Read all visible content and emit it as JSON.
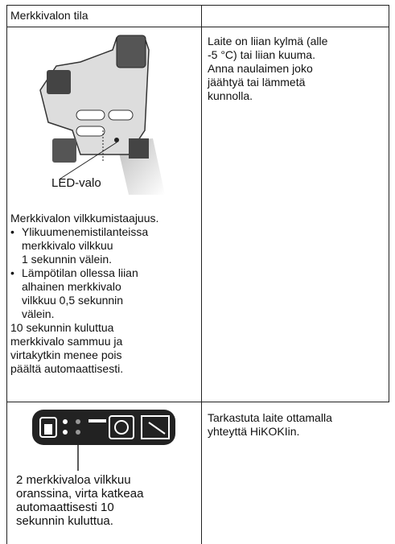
{
  "table": {
    "header": {
      "left": "Merkkivalon tila"
    },
    "rows": [
      {
        "left": {
          "image_label": "LED-valo",
          "intro": "Merkkivalon vilkkumistaajuus.",
          "bullets": [
            [
              "Ylikuumenemistilanteissa",
              "merkkivalo vilkkuu",
              "1 sekunnin välein."
            ],
            [
              "Lämpötilan ollessa liian",
              "alhainen merkkivalo",
              "vilkkuu 0,5 sekunnin",
              "välein."
            ]
          ],
          "note": [
            "10 sekunnin kuluttua",
            "merkkivalo sammuu ja",
            "virtakytkin menee pois",
            "päältä automaattisesti."
          ]
        },
        "right": [
          "Laite on liian kylmä (alle",
          "-5 °C) tai liian kuuma.",
          "Anna naulaimen joko",
          "jäähtyä tai lämmetä",
          "kunnolla."
        ]
      },
      {
        "left": {
          "caption": [
            "2 merkkivaloa vilkkuu",
            "oranssina, virta katkeaa",
            "automaattisesti 10",
            "sekunnin kuluttua."
          ]
        },
        "right": [
          "Tarkastuta laite ottamalla",
          "yhteyttä HiKOKIin."
        ]
      }
    ]
  }
}
